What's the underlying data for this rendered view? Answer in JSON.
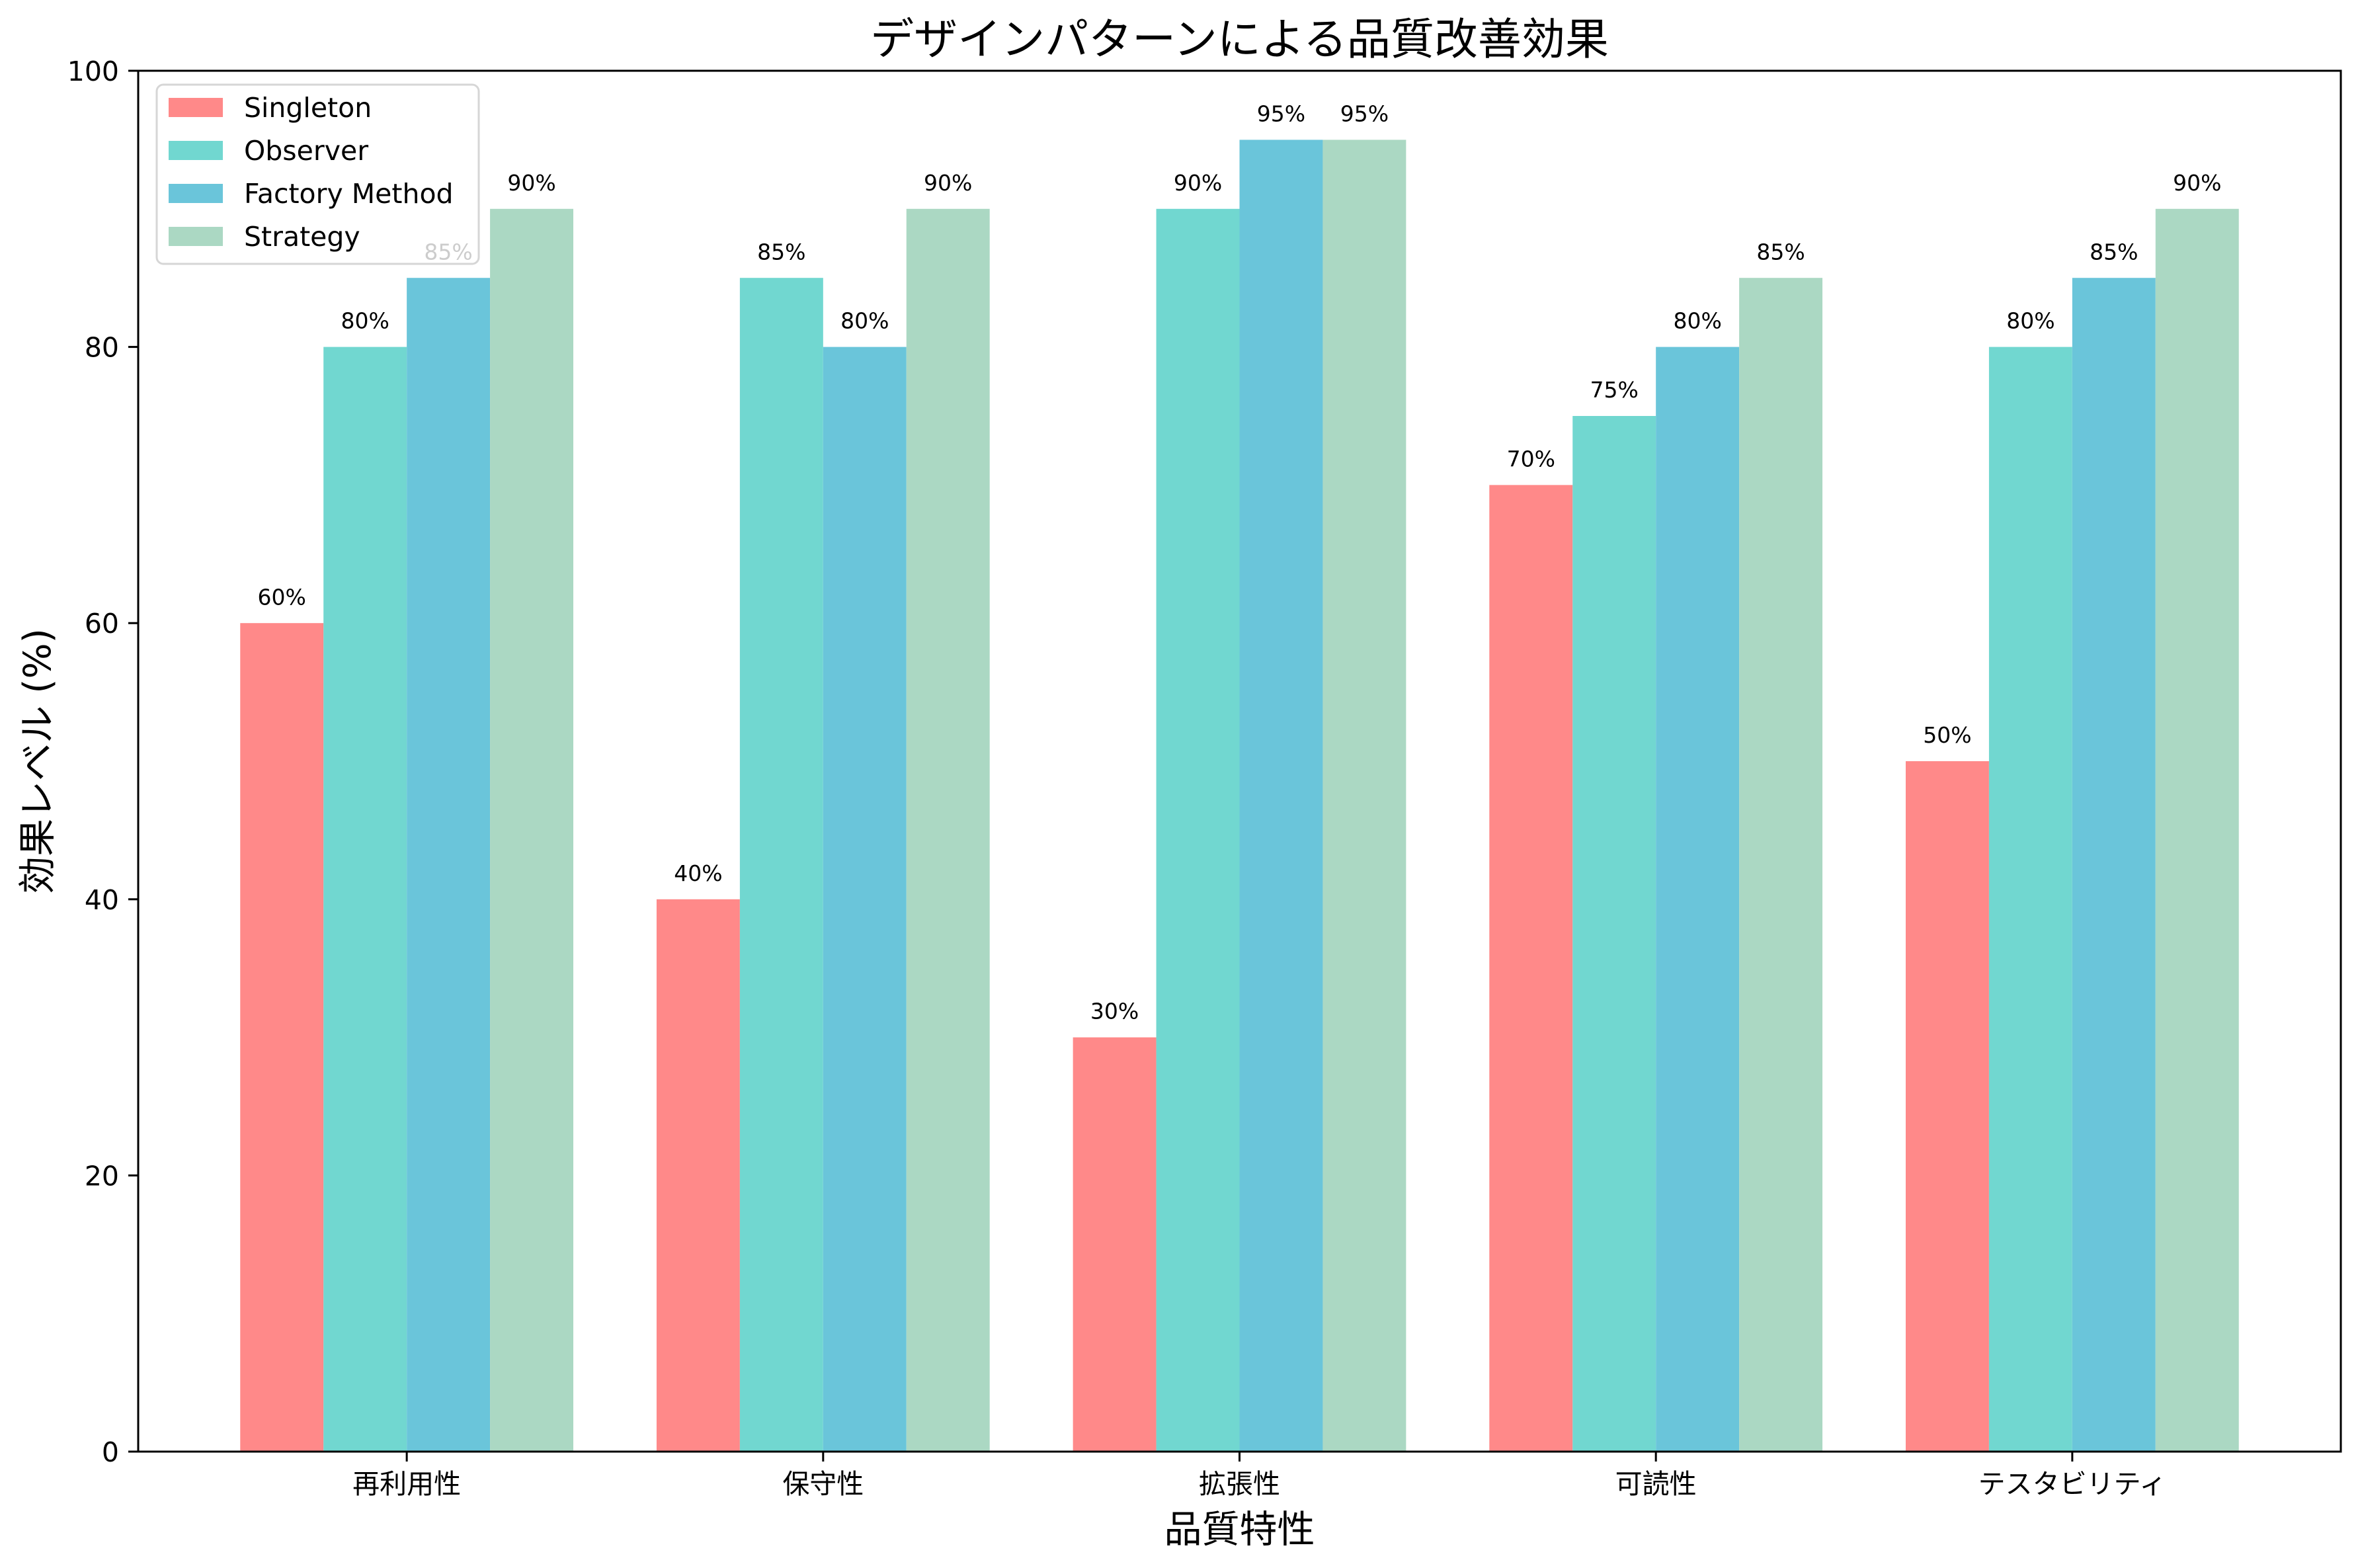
{
  "chart_data": {
    "type": "bar",
    "title": "デザインパターンによる品質改善効果",
    "xlabel": "品質特性",
    "ylabel": "効果レベル (%)",
    "categories": [
      "再利用性",
      "保守性",
      "拡張性",
      "可読性",
      "テスタビリティ"
    ],
    "ylim": [
      0,
      100
    ],
    "yticks": [
      0,
      20,
      40,
      60,
      80,
      100
    ],
    "grid": false,
    "legend": "upper-left",
    "series": [
      {
        "name": "Singleton",
        "color": "#FF8989",
        "values": [
          60,
          40,
          30,
          70,
          50
        ],
        "labels": [
          "60%",
          "40%",
          "30%",
          "70%",
          "50%"
        ]
      },
      {
        "name": "Observer",
        "color": "#71D7D0",
        "values": [
          80,
          85,
          90,
          75,
          80
        ],
        "labels": [
          "80%",
          "85%",
          "90%",
          "75%",
          "80%"
        ]
      },
      {
        "name": "Factory Method",
        "color": "#6AC5DA",
        "values": [
          85,
          80,
          95,
          80,
          85
        ],
        "labels": [
          "85%",
          "80%",
          "95%",
          "80%",
          "85%"
        ]
      },
      {
        "name": "Strategy",
        "color": "#ABD8C3",
        "values": [
          90,
          90,
          95,
          85,
          90
        ],
        "labels": [
          "90%",
          "90%",
          "95%",
          "85%",
          "90%"
        ]
      }
    ]
  }
}
